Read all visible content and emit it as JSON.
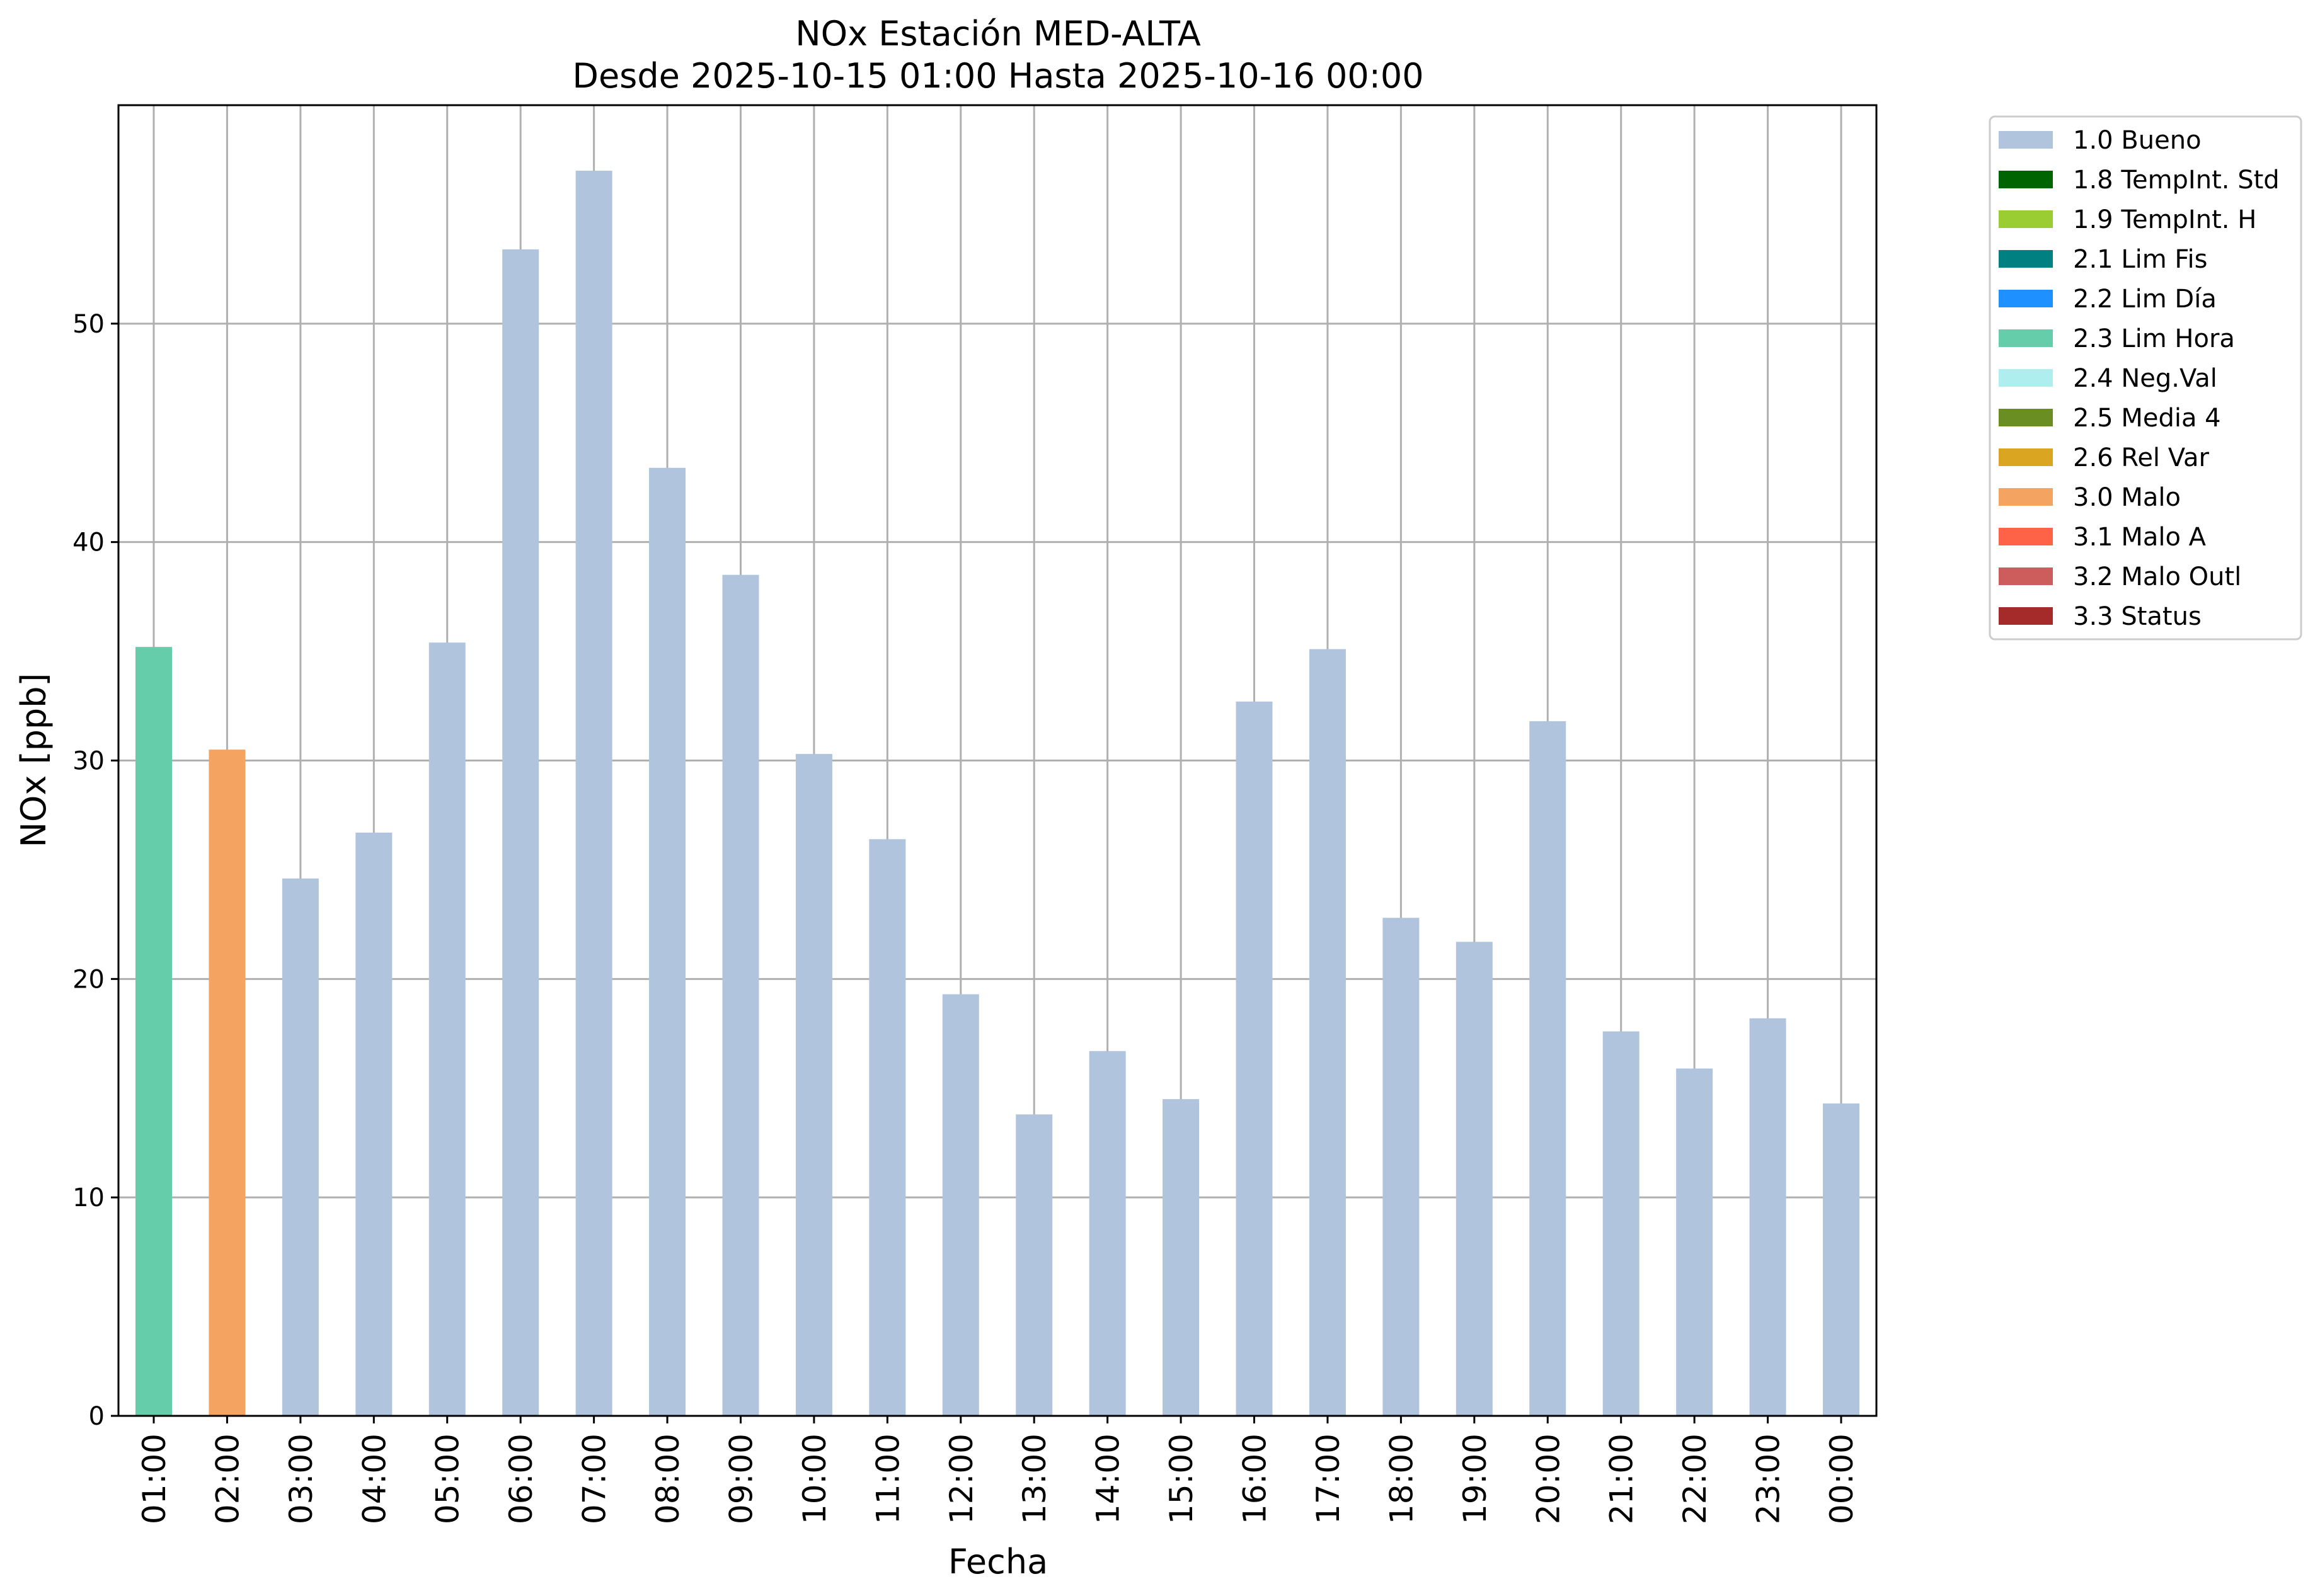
{
  "chart_data": {
    "type": "bar",
    "title": "NOx Estación MED-ALTA",
    "subtitle": "Desde 2025-10-15 01:00 Hasta 2025-10-16 00:00",
    "xlabel": "Fecha",
    "ylabel": "NOx [ppb]",
    "ylim": [
      0,
      60
    ],
    "yticks": [
      0,
      10,
      20,
      30,
      40,
      50
    ],
    "grid": true,
    "legend_position": "outside-top-right",
    "categories": [
      "01:00",
      "02:00",
      "03:00",
      "04:00",
      "05:00",
      "06:00",
      "07:00",
      "08:00",
      "09:00",
      "10:00",
      "11:00",
      "12:00",
      "13:00",
      "14:00",
      "15:00",
      "16:00",
      "17:00",
      "18:00",
      "19:00",
      "20:00",
      "21:00",
      "22:00",
      "23:00",
      "00:00"
    ],
    "values": [
      35.2,
      30.5,
      24.6,
      26.7,
      35.4,
      53.4,
      57.0,
      43.4,
      38.5,
      30.3,
      26.4,
      19.3,
      13.8,
      16.7,
      14.5,
      32.7,
      35.1,
      22.8,
      21.7,
      31.8,
      17.6,
      15.9,
      18.2,
      14.3
    ],
    "flags": [
      "2.3 Lim Hora",
      "3.0 Malo",
      "1.0 Bueno",
      "1.0 Bueno",
      "1.0 Bueno",
      "1.0 Bueno",
      "1.0 Bueno",
      "1.0 Bueno",
      "1.0 Bueno",
      "1.0 Bueno",
      "1.0 Bueno",
      "1.0 Bueno",
      "1.0 Bueno",
      "1.0 Bueno",
      "1.0 Bueno",
      "1.0 Bueno",
      "1.0 Bueno",
      "1.0 Bueno",
      "1.0 Bueno",
      "1.0 Bueno",
      "1.0 Bueno",
      "1.0 Bueno",
      "1.0 Bueno",
      "1.0 Bueno"
    ],
    "legend": [
      {
        "name": "1.0 Bueno",
        "color": "#b0c4de"
      },
      {
        "name": "1.8 TempInt. Std",
        "color": "#006400"
      },
      {
        "name": "1.9 TempInt. H",
        "color": "#9acd32"
      },
      {
        "name": "2.1 Lim Fis",
        "color": "#008080"
      },
      {
        "name": "2.2 Lim Día",
        "color": "#1e90ff"
      },
      {
        "name": "2.3 Lim Hora",
        "color": "#66cdaa"
      },
      {
        "name": "2.4 Neg.Val",
        "color": "#afeeee"
      },
      {
        "name": "2.5 Media 4",
        "color": "#6b8e23"
      },
      {
        "name": "2.6 Rel Var",
        "color": "#daa520"
      },
      {
        "name": "3.0 Malo",
        "color": "#f4a460"
      },
      {
        "name": "3.1 Malo A",
        "color": "#ff6347"
      },
      {
        "name": "3.2 Malo Outl",
        "color": "#cd5c5c"
      },
      {
        "name": "3.3 Status",
        "color": "#a52a2a"
      }
    ]
  }
}
